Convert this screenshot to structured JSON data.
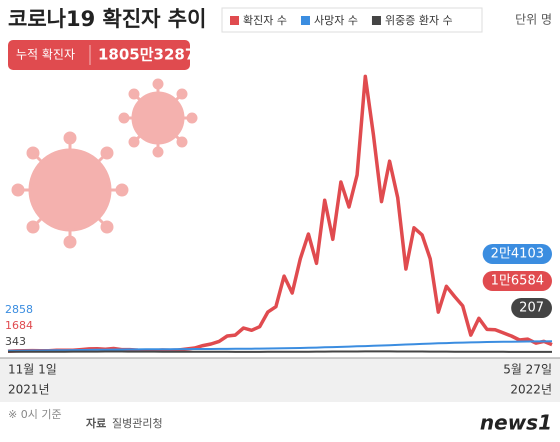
{
  "chart_data": {
    "type": "line",
    "title": "코로나19 확진자 추이",
    "summary_label": "누적 확진자",
    "summary_value": "1805만3287",
    "unit_label": "단위 명",
    "categories": [
      "11월 1일",
      null,
      null,
      null,
      null,
      null,
      null,
      null,
      null,
      null,
      null,
      null,
      null,
      null,
      null,
      null,
      null,
      null,
      null,
      null,
      null,
      null,
      null,
      null,
      null,
      null,
      null,
      null,
      null,
      null,
      null,
      null,
      null,
      null,
      null,
      null,
      null,
      null,
      null,
      null,
      null,
      null,
      null,
      null,
      null,
      null,
      null,
      null,
      null,
      null,
      null,
      null,
      null,
      null,
      null,
      null,
      null,
      null,
      null,
      null,
      null,
      null,
      null,
      null,
      null,
      null,
      null,
      "5월 27일"
    ],
    "category_years": [
      "2021년",
      "2022년"
    ],
    "ylim": [
      0,
      640000
    ],
    "series": [
      {
        "name": "확진자 수",
        "color": "#e04b4f",
        "values": [
          1684,
          2500,
          2800,
          3200,
          2600,
          3000,
          4000,
          4100,
          3900,
          5300,
          7000,
          7100,
          6200,
          7800,
          5300,
          5400,
          4200,
          3800,
          3100,
          4400,
          4000,
          4500,
          6800,
          9000,
          14500,
          18000,
          24000,
          36000,
          38000,
          54000,
          49000,
          57000,
          90000,
          102000,
          171000,
          133000,
          210000,
          266000,
          200000,
          342000,
          254000,
          383000,
          327000,
          399000,
          621000,
          490000,
          339000,
          430000,
          348000,
          187000,
          280000,
          264000,
          210000,
          90000,
          148000,
          125000,
          104000,
          38000,
          76000,
          51000,
          50000,
          43000,
          36000,
          27000,
          29000,
          20000,
          24000,
          16584
        ],
        "value_labels": [
          null,
          null,
          null,
          null,
          null,
          null,
          null,
          null,
          null,
          null,
          null,
          null,
          null,
          null,
          null,
          null,
          null,
          null,
          null,
          null,
          null,
          null,
          null,
          null,
          null,
          null,
          null,
          null,
          null,
          null,
          null,
          null,
          null,
          null,
          null,
          null,
          null,
          null,
          null,
          null,
          null,
          null,
          null,
          null,
          null,
          null,
          null,
          null,
          null,
          null,
          null,
          null,
          null,
          null,
          null,
          null,
          null,
          null,
          null,
          null,
          null,
          null,
          null,
          null,
          null,
          null,
          null,
          "1만6584"
        ]
      },
      {
        "name": "사망자 수",
        "color": "#3b8de0",
        "values": [
          2858,
          3000,
          3150,
          3300,
          3450,
          3600,
          3800,
          4000,
          4200,
          4400,
          4650,
          4900,
          5150,
          5400,
          5600,
          5750,
          5900,
          6050,
          6150,
          6250,
          6350,
          6450,
          6550,
          6650,
          6750,
          6850,
          6950,
          7050,
          7200,
          7350,
          7500,
          7700,
          7900,
          8100,
          8400,
          8700,
          9100,
          9500,
          10000,
          10500,
          11000,
          11600,
          12200,
          12800,
          13400,
          14000,
          14700,
          15400,
          16100,
          16800,
          17500,
          18200,
          18900,
          19500,
          20100,
          20700,
          21200,
          21700,
          22100,
          22500,
          22800,
          23100,
          23300,
          23500,
          23700,
          23850,
          24000,
          24103
        ],
        "value_labels": [
          null,
          null,
          null,
          null,
          null,
          null,
          null,
          null,
          null,
          null,
          null,
          null,
          null,
          null,
          null,
          null,
          null,
          null,
          null,
          null,
          null,
          null,
          null,
          null,
          null,
          null,
          null,
          null,
          null,
          null,
          null,
          null,
          null,
          null,
          null,
          null,
          null,
          null,
          null,
          null,
          null,
          null,
          null,
          null,
          null,
          null,
          null,
          null,
          null,
          null,
          null,
          null,
          null,
          null,
          null,
          null,
          null,
          null,
          null,
          null,
          null,
          null,
          null,
          null,
          null,
          null,
          null,
          "2만4103"
        ]
      },
      {
        "name": "위중증 환자 수",
        "color": "#444444",
        "values": [
          343,
          380,
          420,
          470,
          530,
          590,
          650,
          720,
          790,
          860,
          930,
          1000,
          1050,
          1080,
          1050,
          1000,
          950,
          900,
          820,
          750,
          680,
          620,
          560,
          500,
          450,
          420,
          400,
          380,
          300,
          280,
          290,
          300,
          350,
          420,
          480,
          560,
          640,
          720,
          850,
          950,
          1030,
          1100,
          1150,
          1200,
          1240,
          1260,
          1280,
          1270,
          1220,
          1160,
          1100,
          1050,
          980,
          900,
          820,
          740,
          660,
          590,
          520,
          460,
          400,
          350,
          310,
          280,
          250,
          230,
          215,
          207
        ]
      }
    ],
    "note": "※ 0시 기준",
    "source_label": "자료",
    "source": "질병관리청",
    "logo": "news1"
  }
}
